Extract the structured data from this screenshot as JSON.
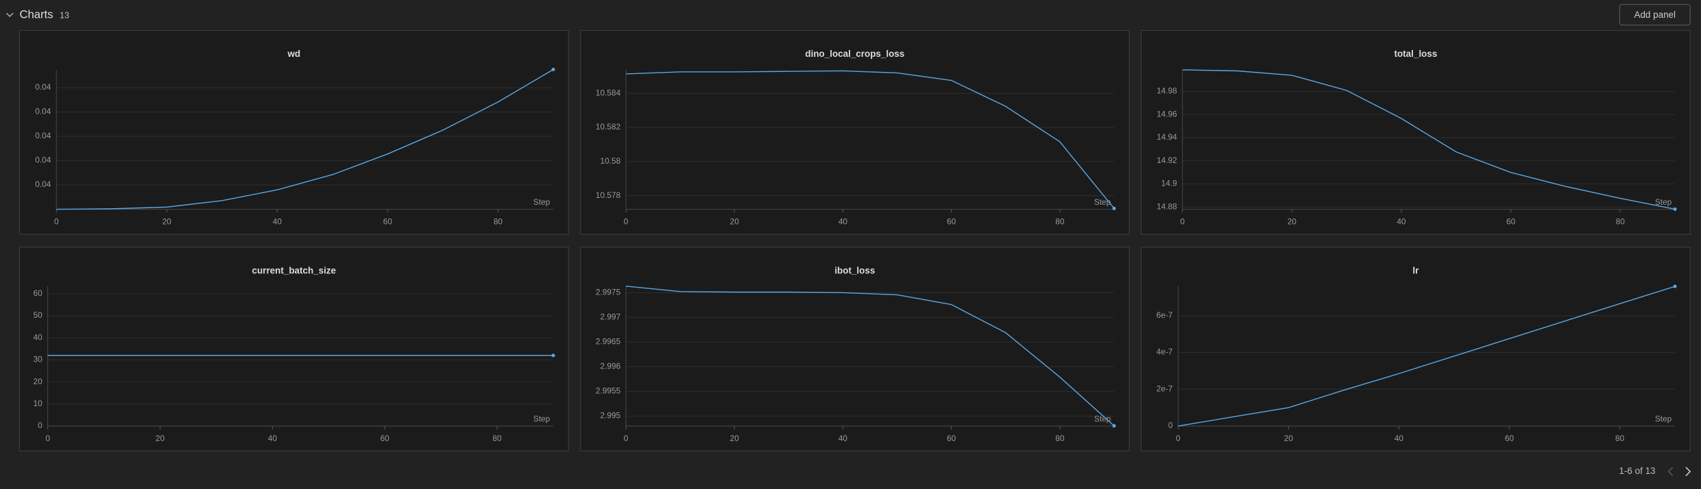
{
  "header": {
    "title": "Charts",
    "count": 13,
    "button": "Add panel",
    "pagination": "1-6 of 13"
  },
  "chart_data": [
    {
      "type": "line",
      "title": "wd",
      "xlabel": "Step",
      "color": "#5aa7e3",
      "x": [
        0,
        10,
        20,
        30,
        40,
        50,
        60,
        70,
        80,
        90
      ],
      "values": [
        0.04,
        0.040004,
        0.040018,
        0.040071,
        0.04016,
        0.040285,
        0.040455,
        0.040651,
        0.040883,
        0.04115
      ],
      "xlim": [
        0,
        90
      ],
      "xticks": [
        0,
        20,
        40,
        60,
        80
      ],
      "ylim": [
        0.04,
        0.04115
      ],
      "yticks": [
        {
          "value": 0.0402,
          "label": "0.04"
        },
        {
          "value": 0.0404,
          "label": "0.04"
        },
        {
          "value": 0.0406,
          "label": "0.04"
        },
        {
          "value": 0.0408,
          "label": "0.04"
        },
        {
          "value": 0.041,
          "label": "0.04"
        }
      ],
      "grid": true
    },
    {
      "type": "line",
      "title": "dino_local_crops_loss",
      "xlabel": "Step",
      "color": "#5aa7e3",
      "x": [
        0,
        10,
        20,
        30,
        40,
        50,
        60,
        70,
        80,
        90
      ],
      "values": [
        10.58514,
        10.58526,
        10.58526,
        10.58529,
        10.58532,
        10.5852,
        10.58476,
        10.58324,
        10.58116,
        10.57725
      ],
      "xlim": [
        0,
        90
      ],
      "xticks": [
        0,
        20,
        40,
        60,
        80
      ],
      "ylim": [
        10.5772,
        10.5854
      ],
      "yticks": [
        10.578,
        10.58,
        10.582,
        10.584
      ],
      "grid": true
    },
    {
      "type": "line",
      "title": "total_loss",
      "xlabel": "Step",
      "color": "#5aa7e3",
      "x": [
        0,
        10,
        20,
        30,
        40,
        50,
        60,
        70,
        80,
        90
      ],
      "values": [
        14.9987,
        14.9978,
        14.994,
        14.9809,
        14.9566,
        14.9277,
        14.9099,
        14.8978,
        14.8875,
        14.8781
      ],
      "xlim": [
        0,
        90
      ],
      "xticks": [
        0,
        20,
        40,
        60,
        80
      ],
      "ylim": [
        14.878,
        14.999
      ],
      "yticks": [
        14.88,
        14.9,
        14.92,
        14.94,
        14.96,
        14.98
      ],
      "grid": true
    },
    {
      "type": "line",
      "title": "current_batch_size",
      "xlabel": "Step",
      "color": "#5aa7e3",
      "x": [
        0,
        10,
        20,
        30,
        40,
        50,
        60,
        70,
        80,
        90
      ],
      "values": [
        32,
        32,
        32,
        32,
        32,
        32,
        32,
        32,
        32,
        32
      ],
      "xlim": [
        0,
        90
      ],
      "xticks": [
        0,
        20,
        40,
        60,
        80
      ],
      "ylim": [
        0,
        63.4
      ],
      "yticks": [
        0,
        10,
        20,
        30,
        40,
        50,
        60
      ],
      "grid": true
    },
    {
      "type": "line",
      "title": "ibot_loss",
      "xlabel": "Step",
      "color": "#5aa7e3",
      "x": [
        0,
        10,
        20,
        30,
        40,
        50,
        60,
        70,
        80,
        90
      ],
      "values": [
        2.997632,
        2.997522,
        2.997511,
        2.997511,
        2.9975,
        2.997456,
        2.997259,
        2.996689,
        2.995789,
        2.994803
      ],
      "xlim": [
        0,
        90
      ],
      "xticks": [
        0,
        20,
        40,
        60,
        80
      ],
      "ylim": [
        2.9948,
        2.99763
      ],
      "yticks": [
        2.995,
        2.9955,
        2.996,
        2.9965,
        2.997,
        2.9975
      ],
      "grid": true
    },
    {
      "type": "line",
      "title": "lr",
      "xlabel": "Step",
      "color": "#5aa7e3",
      "x": [
        0,
        10,
        20,
        30,
        40,
        50,
        60,
        70,
        80,
        90
      ],
      "values": [
        0,
        5e-08,
        1e-07,
        1.95e-07,
        2.85e-07,
        3.8e-07,
        4.75e-07,
        5.7e-07,
        6.65e-07,
        7.59e-07
      ],
      "xlim": [
        0,
        90
      ],
      "xticks": [
        0,
        20,
        40,
        60,
        80
      ],
      "ylim": [
        0,
        7.6e-07
      ],
      "yticks": [
        0,
        2e-07,
        4e-07,
        6e-07
      ],
      "grid": true
    }
  ]
}
